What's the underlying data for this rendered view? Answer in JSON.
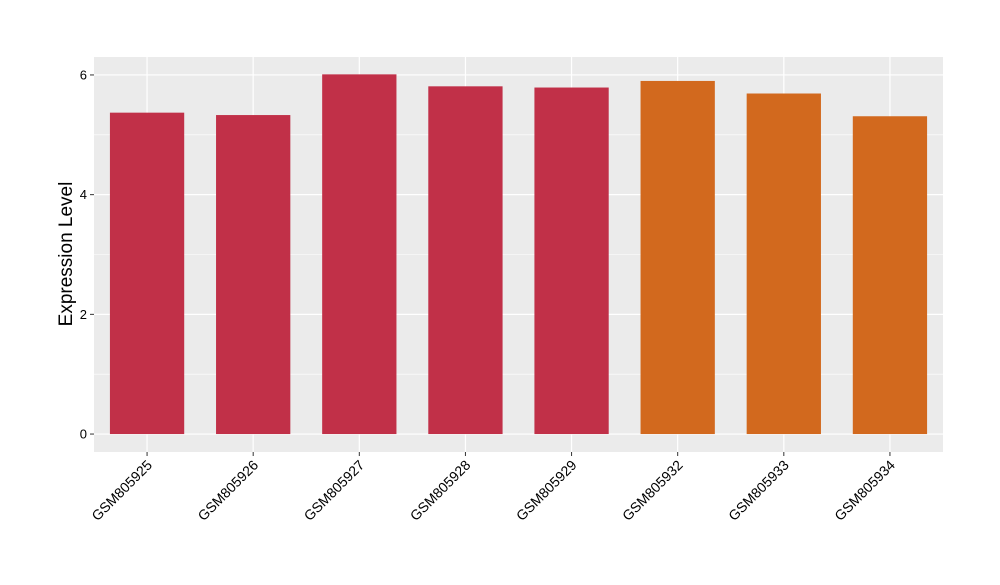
{
  "chart_data": {
    "type": "bar",
    "title": "",
    "xlabel": "",
    "ylabel": "Expression Level",
    "ylim": [
      -0.3,
      6.3
    ],
    "yticks": [
      0,
      2,
      4,
      6
    ],
    "grid": true,
    "legend": "none",
    "categories": [
      "GSM805925",
      "GSM805926",
      "GSM805927",
      "GSM805928",
      "GSM805929",
      "GSM805932",
      "GSM805933",
      "GSM805934"
    ],
    "values": [
      5.37,
      5.33,
      6.01,
      5.81,
      5.79,
      5.9,
      5.69,
      5.31
    ],
    "groups": [
      "A",
      "A",
      "A",
      "A",
      "A",
      "B",
      "B",
      "B"
    ],
    "colors": {
      "A": "#c13048",
      "B": "#d2691e",
      "panel": "#ebebeb",
      "gridline": "#ffffff",
      "tick": "#333333"
    }
  }
}
